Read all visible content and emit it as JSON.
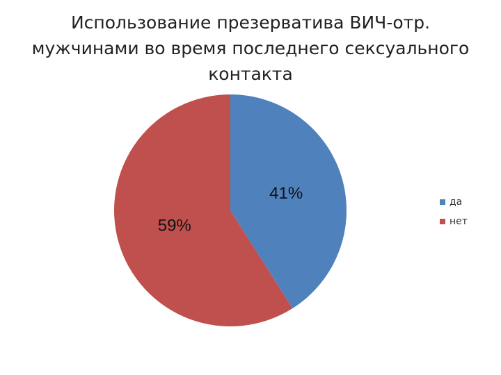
{
  "chart_data": {
    "type": "pie",
    "title": "Использование презерватива ВИЧ-отр. мужчинами во время последнего сексуального контакта",
    "categories": [
      "да",
      "нет"
    ],
    "values": [
      41,
      59
    ],
    "value_labels": [
      "41%",
      "59%"
    ],
    "colors": [
      "#4f81bd",
      "#c0504d"
    ],
    "legend": "right"
  }
}
